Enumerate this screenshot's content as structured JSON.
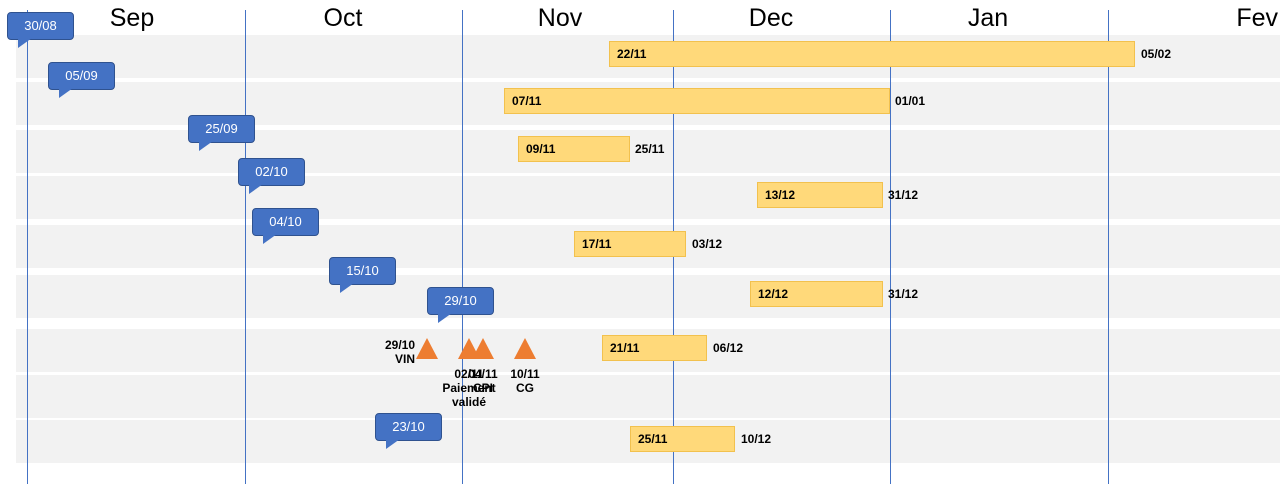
{
  "chart_data": {
    "type": "gantt",
    "title": "",
    "x_axis": {
      "type": "date",
      "start": "2021-08-25",
      "end": "2022-02-28",
      "gridlines": [
        "2021-08-31",
        "2021-10-01",
        "2021-11-01",
        "2021-12-01",
        "2022-01-01",
        "2022-02-01"
      ],
      "month_labels": [
        {
          "label": "Sep",
          "center": "2021-09-15"
        },
        {
          "label": "Oct",
          "center": "2021-10-15"
        },
        {
          "label": "Nov",
          "center": "2021-11-15"
        },
        {
          "label": "Dec",
          "center": "2021-12-15"
        },
        {
          "label": "Jan",
          "center": "2022-01-15"
        },
        {
          "label": "Fev",
          "center": "2022-02-15"
        }
      ]
    },
    "rows": [
      {
        "callout": {
          "date": "2021-08-30",
          "label": "30/08"
        },
        "bar": {
          "start": "2021-11-22",
          "end": "2022-02-05",
          "start_label": "22/11",
          "end_label": "05/02"
        }
      },
      {
        "callout": {
          "date": "2021-09-05",
          "label": "05/09"
        },
        "bar": {
          "start": "2021-11-07",
          "end": "2022-01-01",
          "start_label": "07/11",
          "end_label": "01/01"
        }
      },
      {
        "callout": {
          "date": "2021-09-25",
          "label": "25/09"
        },
        "bar": {
          "start": "2021-11-09",
          "end": "2021-11-25",
          "start_label": "09/11",
          "end_label": "25/11"
        }
      },
      {
        "callout": {
          "date": "2021-10-02",
          "label": "02/10"
        },
        "bar": {
          "start": "2021-12-13",
          "end": "2021-12-31",
          "start_label": "13/12",
          "end_label": "31/12"
        }
      },
      {
        "callout": {
          "date": "2021-10-04",
          "label": "04/10"
        },
        "bar": {
          "start": "2021-11-17",
          "end": "2021-12-03",
          "start_label": "17/11",
          "end_label": "03/12"
        }
      },
      {
        "callout": {
          "date": "2021-10-15",
          "label": "15/10"
        },
        "bar": {
          "start": "2021-12-12",
          "end": "2021-12-31",
          "start_label": "12/12",
          "end_label": "31/12"
        }
      },
      {
        "callout": {
          "date": "2021-10-29",
          "label": "29/10"
        },
        "bar": {
          "start": "2021-11-21",
          "end": "2021-12-06",
          "start_label": "21/11",
          "end_label": "06/12"
        },
        "milestones": [
          {
            "date": "2021-10-29",
            "label": "29/10\nVIN",
            "label_side": "left"
          },
          {
            "date": "2021-11-02",
            "label": "02/11\nPaiement\nvalidé",
            "label_side": "below"
          },
          {
            "date": "2021-11-04",
            "label": "04/11\nCPI",
            "label_side": "below"
          },
          {
            "date": "2021-11-10",
            "label": "10/11\nCG",
            "label_side": "below"
          }
        ]
      },
      {
        "empty": true
      },
      {
        "callout": {
          "date": "2021-10-23",
          "label": "23/10"
        },
        "bar": {
          "start": "2021-11-25",
          "end": "2021-12-10",
          "start_label": "25/11",
          "end_label": "10/12"
        }
      }
    ]
  },
  "colors": {
    "band": "#f2f2f2",
    "gridline": "#4472c4",
    "bar_fill": "#ffd97a",
    "bar_border": "#f2c14e",
    "callout": "#4472c4",
    "milestone": "#ed7d31"
  }
}
